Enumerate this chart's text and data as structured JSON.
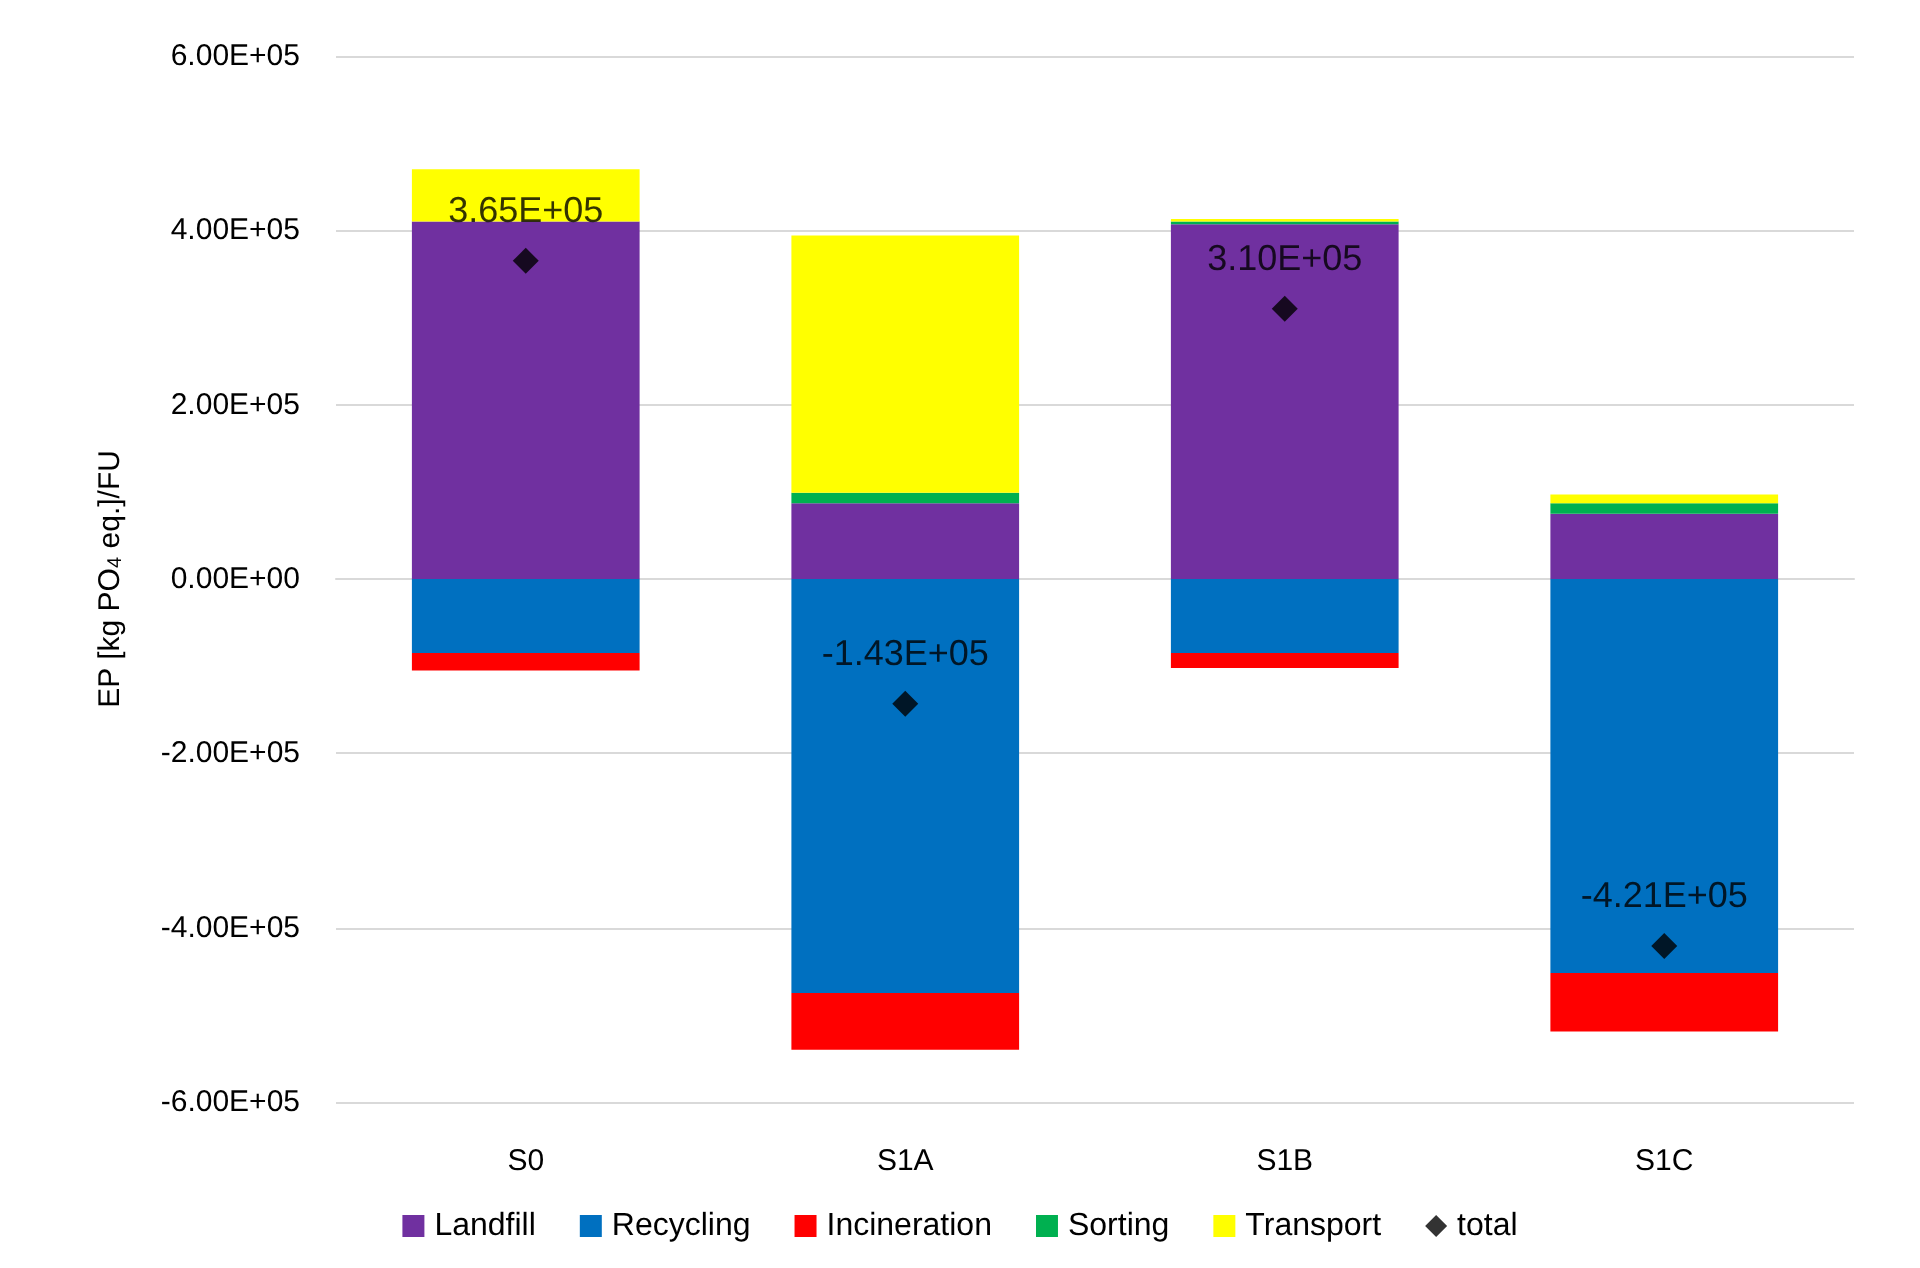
{
  "chart_data": {
    "type": "bar",
    "stacked": true,
    "ylabel": "EP [kg PO$_{4}$ eq.]/FU",
    "categories": [
      "S0",
      "S1A",
      "S1B",
      "S1C"
    ],
    "series": [
      {
        "name": "Landfill",
        "color": "#7030a0",
        "values": [
          410000,
          87000,
          407000,
          75000
        ]
      },
      {
        "name": "Recycling",
        "color": "#0070c0",
        "values": [
          -85000,
          -475000,
          -85000,
          -452000
        ]
      },
      {
        "name": "Incineration",
        "color": "#ff0000",
        "values": [
          -20000,
          -65000,
          -17000,
          -67000
        ]
      },
      {
        "name": "Sorting",
        "color": "#00b050",
        "values": [
          0,
          12000,
          3000,
          12000
        ]
      },
      {
        "name": "Transport",
        "color": "#ffff00",
        "values": [
          60000,
          295000,
          3000,
          10000
        ]
      },
      {
        "name": "total",
        "type": "scatter",
        "marker": "diamond",
        "color": "#000000",
        "x": [
          "S0",
          "S1A",
          "S1B",
          "S1C"
        ],
        "values": [
          365000,
          -143000,
          310000,
          -421000
        ],
        "value_labels": [
          "3.65E+05",
          "-1.43E+05",
          "3.10E+05",
          "-4.21E+05"
        ]
      }
    ],
    "ylim": [
      -600000,
      600000
    ],
    "yticks": [
      {
        "value": -600000,
        "label": "-6.00E+05"
      },
      {
        "value": -400000,
        "label": "-4.00E+05"
      },
      {
        "value": -200000,
        "label": "-2.00E+05"
      },
      {
        "value": 0,
        "label": "0.00E+00"
      },
      {
        "value": 200000,
        "label": "2.00E+05"
      },
      {
        "value": 400000,
        "label": "4.00E+05"
      },
      {
        "value": 600000,
        "label": "6.00E+05"
      }
    ],
    "grid": "y",
    "legend": "bottom"
  }
}
